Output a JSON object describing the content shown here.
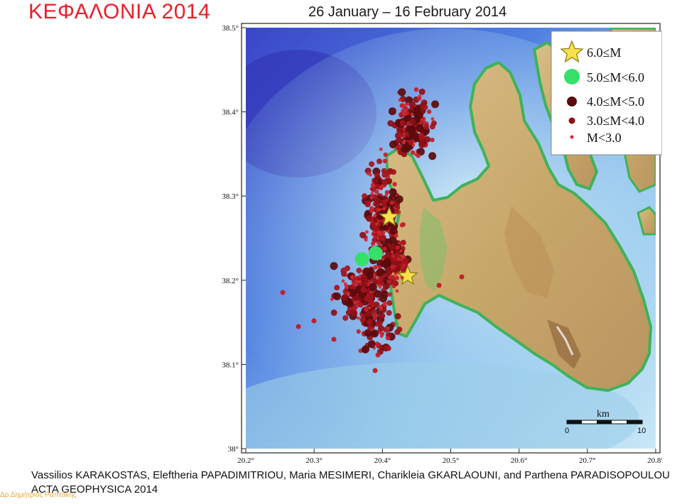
{
  "slide": {
    "title": "ΚΕΦΑΛΟΝΙΑ 2014",
    "dates": "26 January – 16 February 2014"
  },
  "map": {
    "lat_ticks": [
      "38.5°",
      "38.4°",
      "38.3°",
      "38.2°",
      "38.1°",
      "38°"
    ],
    "lon_ticks": [
      "20.2°",
      "20.3°",
      "20.4°",
      "20.5°",
      "20.6°",
      "20.7°",
      "20.8°"
    ],
    "scale_bar": {
      "unit_label": "km",
      "start_label": "0",
      "end_label": "10"
    },
    "legend": [
      {
        "label": "6.0≤M",
        "marker": "star-icon",
        "color": "#f7e14a"
      },
      {
        "label": "5.0≤M<6.0",
        "marker": "circle",
        "color": "#35e06a"
      },
      {
        "label": "4.0≤M<5.0",
        "marker": "circle",
        "color": "#5c0a0c"
      },
      {
        "label": "3.0≤M<4.0",
        "marker": "circle",
        "color": "#8d0f16"
      },
      {
        "label": "M<3.0",
        "marker": "circle",
        "color": "#d32a2e"
      }
    ],
    "mainshocks": [
      {
        "lon": 20.41,
        "lat": 38.275,
        "magnitude_class": "6.0≤M"
      },
      {
        "lon": 20.437,
        "lat": 38.205,
        "magnitude_class": "6.0≤M"
      }
    ],
    "large_events": [
      {
        "lon": 20.37,
        "lat": 38.225,
        "magnitude_class": "5.0≤M<6.0"
      },
      {
        "lon": 20.39,
        "lat": 38.232,
        "magnitude_class": "5.0≤M<6.0"
      }
    ]
  },
  "credits": {
    "authors": "Vassilios KARAKOSTAS, Eleftheria PAPADIMITRIOU, Maria MESIMERI, Charikleia GKARLAOUNI, and Parthena PARADISOPOULOU",
    "journal": "ACTA GEOPHYSICA 2014"
  },
  "watermark": "Δρ Δημήτριος Ραπτάκης"
}
